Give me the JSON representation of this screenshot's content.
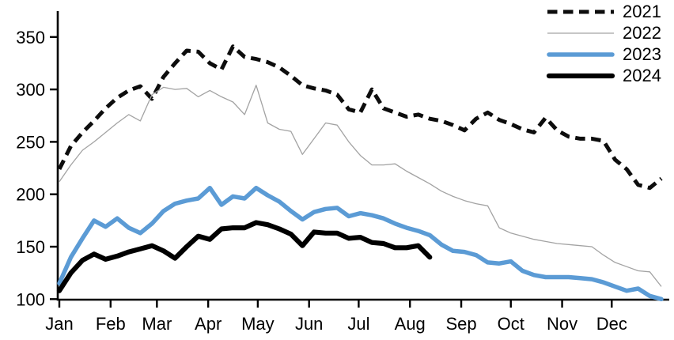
{
  "chart_data": {
    "type": "line",
    "title": "",
    "xlabel": "",
    "ylabel": "",
    "x_unit": "weekly points, Jan through Dec",
    "x_axis": {
      "month_labels": [
        "Jan",
        "Feb",
        "Mar",
        "Apr",
        "May",
        "Jun",
        "Jul",
        "Aug",
        "Sep",
        "Oct",
        "Nov",
        "Dec"
      ]
    },
    "y_axis": {
      "ticks": [
        100,
        150,
        200,
        250,
        300,
        350
      ],
      "min": 100,
      "max": 375,
      "grid": false
    },
    "legend_position": "top-right",
    "axis_color": "#000000",
    "series": [
      {
        "name": "2021",
        "color": "#0d0d0d",
        "style": "dashed",
        "stroke_width": 5,
        "values": [
          224,
          246,
          259,
          270,
          282,
          292,
          299,
          303,
          291,
          312,
          325,
          337,
          336,
          325,
          319,
          341,
          331,
          329,
          326,
          321,
          313,
          304,
          301,
          299,
          295,
          281,
          278,
          300,
          282,
          278,
          274,
          276,
          272,
          270,
          266,
          261,
          272,
          278,
          271,
          267,
          262,
          259,
          273,
          261,
          255,
          253,
          253,
          251,
          233,
          224,
          209,
          206,
          215
        ]
      },
      {
        "name": "2022",
        "color": "#a3a3a3",
        "style": "solid",
        "stroke_width": 1.3,
        "values": [
          212,
          228,
          242,
          250,
          259,
          268,
          276,
          270,
          295,
          302,
          300,
          301,
          293,
          299,
          293,
          288,
          276,
          304,
          268,
          262,
          260,
          238,
          253,
          268,
          266,
          250,
          237,
          228,
          228,
          229,
          222,
          216,
          210,
          203,
          198,
          194,
          191,
          189,
          168,
          163,
          160,
          157,
          155,
          153,
          152,
          151,
          150,
          142,
          135,
          131,
          127,
          126,
          112
        ]
      },
      {
        "name": "2023",
        "color": "#5b9bd5",
        "style": "solid",
        "stroke_width": 5.5,
        "values": [
          115,
          140,
          158,
          175,
          169,
          177,
          168,
          163,
          172,
          184,
          191,
          194,
          196,
          206,
          190,
          198,
          196,
          206,
          199,
          193,
          184,
          176,
          183,
          186,
          187,
          179,
          182,
          180,
          177,
          172,
          168,
          165,
          161,
          152,
          146,
          145,
          142,
          135,
          134,
          136,
          127,
          123,
          121,
          121,
          121,
          120,
          119,
          116,
          112,
          108,
          110,
          103,
          100
        ]
      },
      {
        "name": "2024",
        "color": "#000000",
        "style": "solid",
        "stroke_width": 6.2,
        "values": [
          108,
          125,
          137,
          143,
          138,
          141,
          145,
          148,
          151,
          146,
          139,
          150,
          160,
          157,
          167,
          168,
          168,
          173,
          171,
          167,
          162,
          151,
          164,
          163,
          163,
          158,
          159,
          154,
          153,
          149,
          149,
          151,
          140
        ]
      }
    ]
  }
}
